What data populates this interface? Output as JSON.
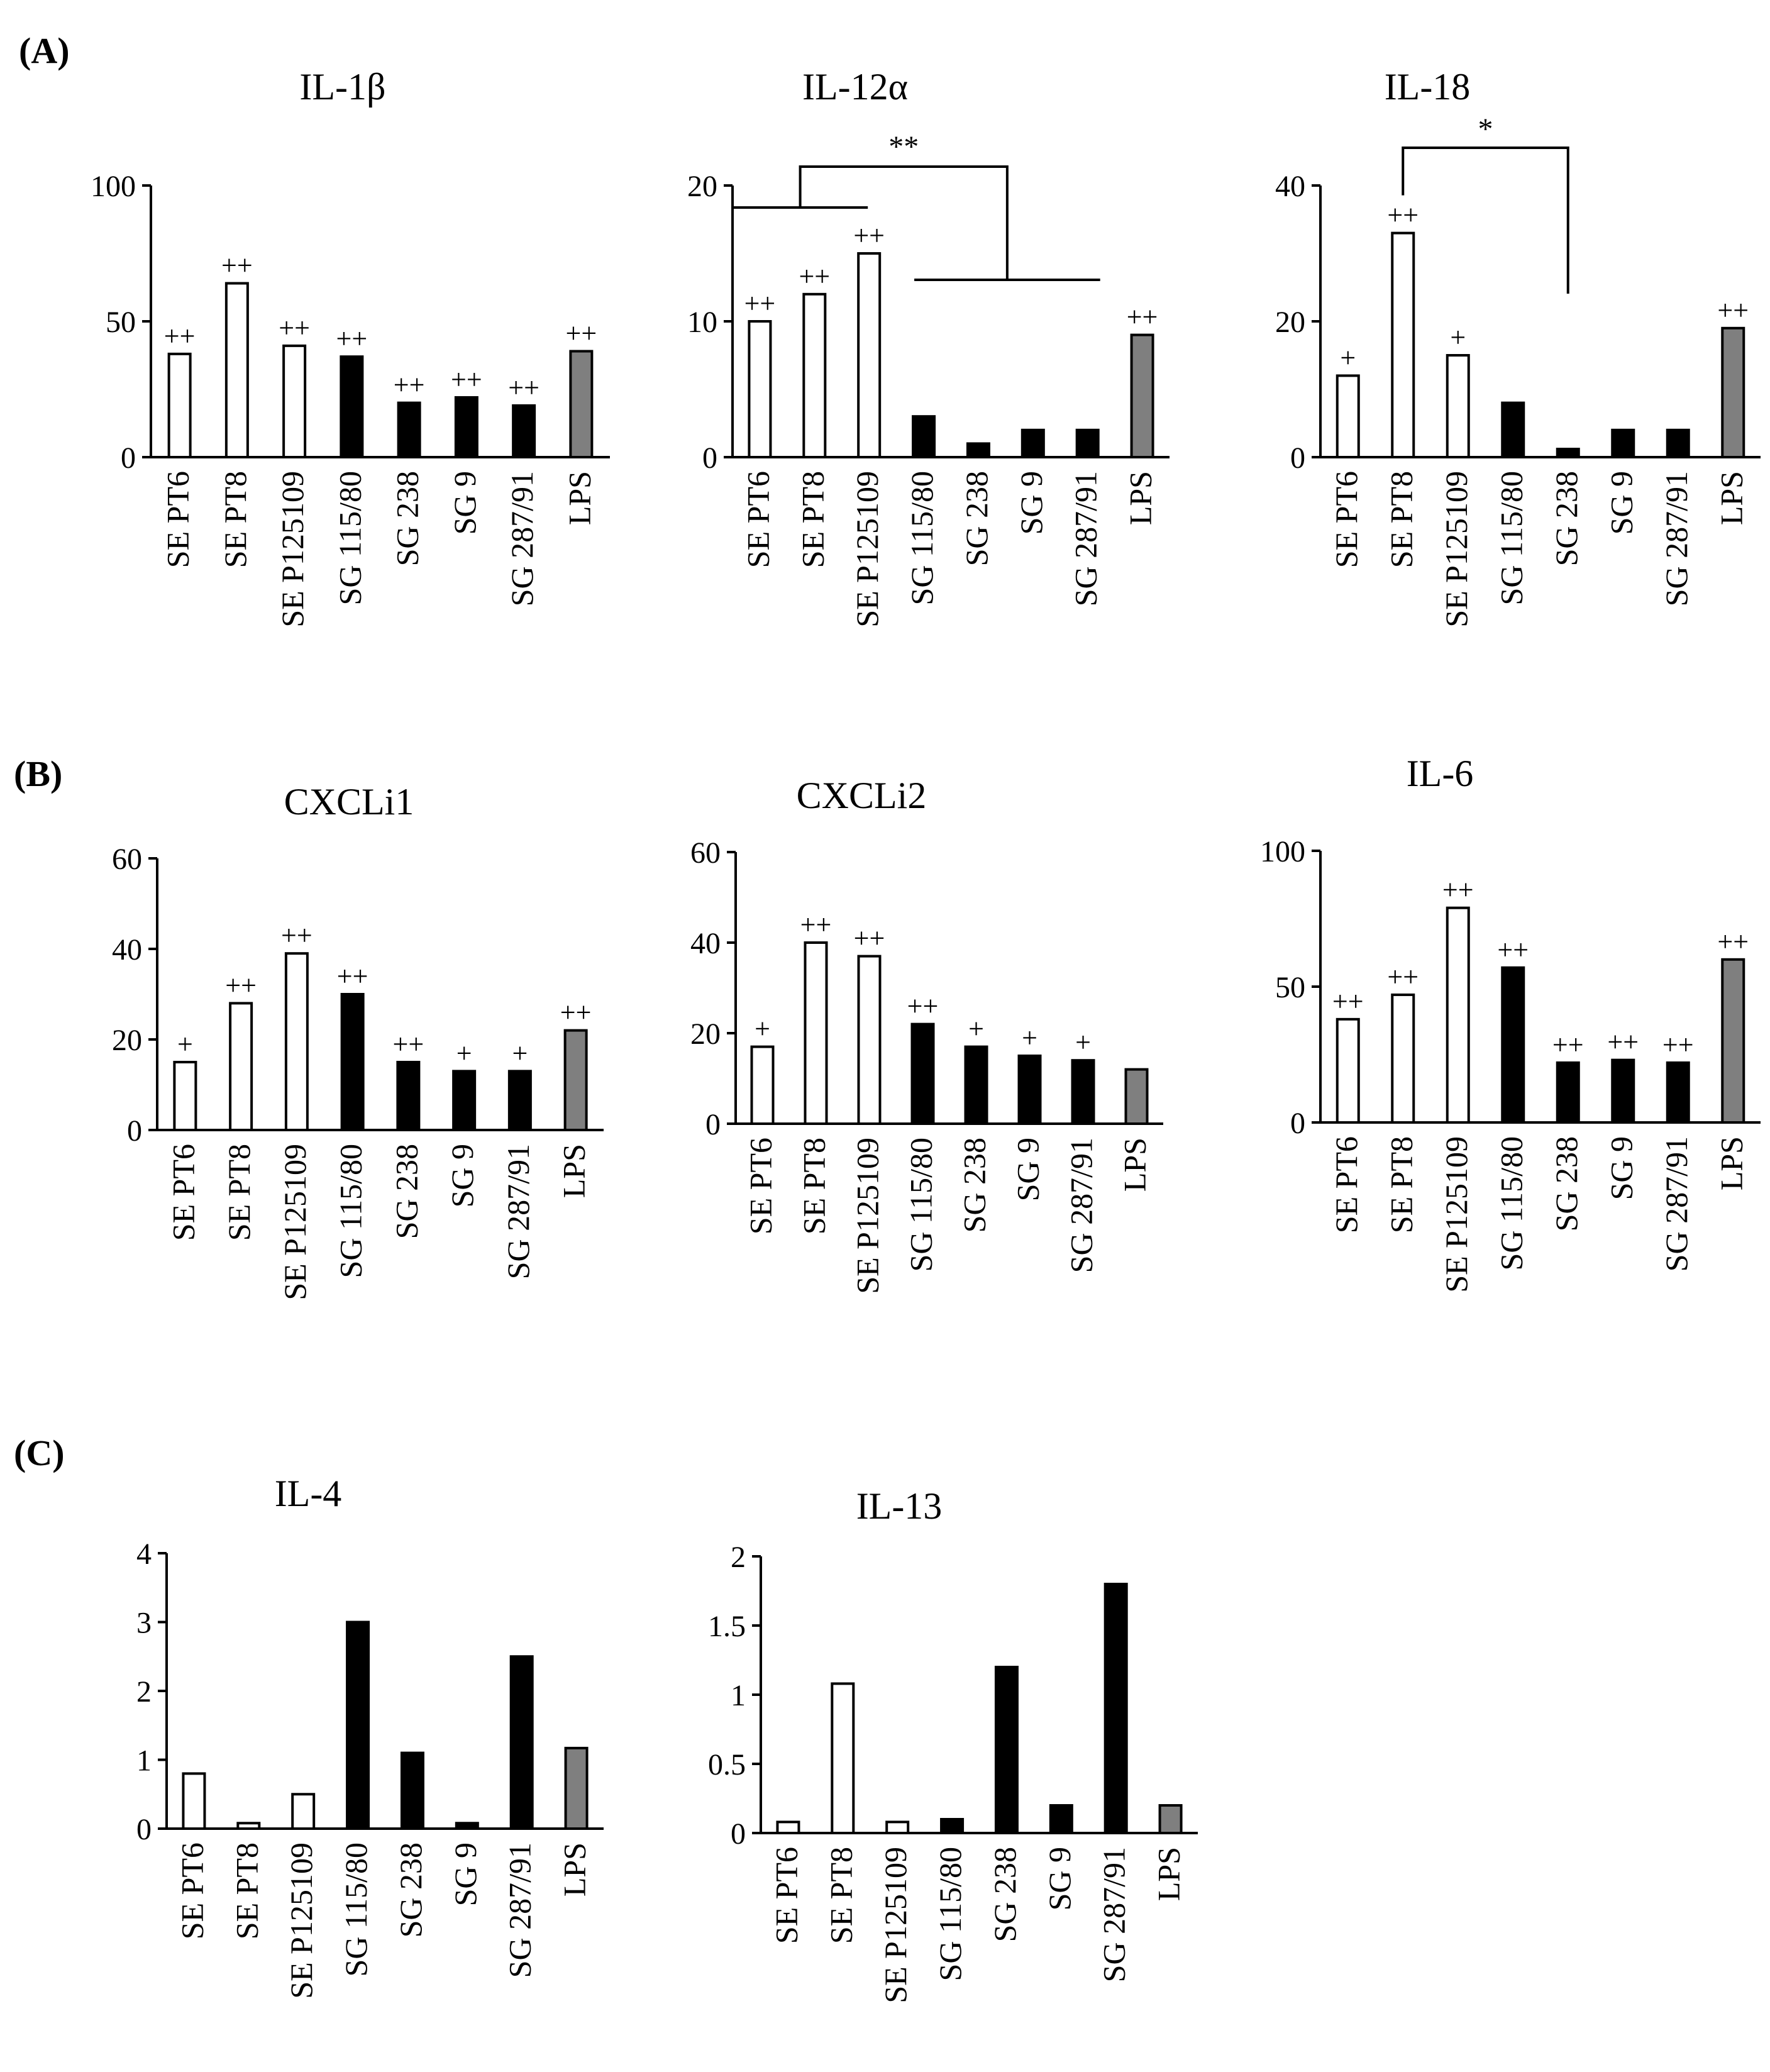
{
  "colors": {
    "SE": "#ffffff",
    "SG": "#000000",
    "LPS": "#7f7f7f",
    "axis": "#000000"
  },
  "panel_labels": [
    "(A)",
    "(B)",
    "(C)"
  ],
  "chart_data": [
    {
      "type": "bar",
      "title": "IL-1β",
      "panel": "(A)",
      "categories": [
        "SE PT6",
        "SE PT8",
        "SE P125109",
        "SG 115/80",
        "SG 238",
        "SG 9",
        "SG 287/91",
        "LPS"
      ],
      "groups": [
        "SE",
        "SE",
        "SE",
        "SG",
        "SG",
        "SG",
        "SG",
        "LPS"
      ],
      "values": [
        38,
        64,
        41,
        37,
        20,
        22,
        19,
        39
      ],
      "annotations": [
        "++",
        "++",
        "++",
        "++",
        "++",
        "++",
        "++",
        "++"
      ],
      "ylim": [
        0,
        100
      ],
      "yticks": [
        0,
        50,
        100
      ]
    },
    {
      "type": "bar",
      "title": "IL-12α",
      "panel": "",
      "categories": [
        "SE PT6",
        "SE PT8",
        "SE P125109",
        "SG 115/80",
        "SG 238",
        "SG 9",
        "SG 287/91",
        "LPS"
      ],
      "groups": [
        "SE",
        "SE",
        "SE",
        "SG",
        "SG",
        "SG",
        "SG",
        "LPS"
      ],
      "values": [
        10,
        12,
        15,
        3,
        1,
        2,
        2,
        9
      ],
      "annotations": [
        "++",
        "++",
        "++",
        "",
        "",
        "",
        "",
        "++"
      ],
      "ylim": [
        0,
        20
      ],
      "yticks": [
        0,
        10,
        20
      ],
      "significance": {
        "label": "**",
        "left_from": 0,
        "left_to": 2,
        "right_from": 3,
        "right_to": 6
      }
    },
    {
      "type": "bar",
      "title": "IL-18",
      "panel": "",
      "categories": [
        "SE PT6",
        "SE PT8",
        "SE P125109",
        "SG 115/80",
        "SG 238",
        "SG 9",
        "SG 287/91",
        "LPS"
      ],
      "groups": [
        "SE",
        "SE",
        "SE",
        "SG",
        "SG",
        "SG",
        "SG",
        "LPS"
      ],
      "values": [
        12,
        33,
        15,
        8,
        1.2,
        4,
        4,
        19
      ],
      "annotations": [
        "+",
        "++",
        "+",
        "",
        "",
        "",
        "",
        "++"
      ],
      "ylim": [
        0,
        40
      ],
      "yticks": [
        0,
        20,
        40
      ],
      "significance": {
        "label": "*",
        "from": 1,
        "to": 4
      }
    },
    {
      "type": "bar",
      "title": "CXCLi1",
      "panel": "(B)",
      "categories": [
        "SE PT6",
        "SE PT8",
        "SE P125109",
        "SG 115/80",
        "SG 238",
        "SG 9",
        "SG 287/91",
        "LPS"
      ],
      "groups": [
        "SE",
        "SE",
        "SE",
        "SG",
        "SG",
        "SG",
        "SG",
        "LPS"
      ],
      "values": [
        15,
        28,
        39,
        30,
        15,
        13,
        13,
        22
      ],
      "annotations": [
        "+",
        "++",
        "++",
        "++",
        "++",
        "+",
        "+",
        "++"
      ],
      "ylim": [
        0,
        60
      ],
      "yticks": [
        0,
        20,
        40,
        60
      ]
    },
    {
      "type": "bar",
      "title": "CXCLi2",
      "panel": "",
      "categories": [
        "SE PT6",
        "SE PT8",
        "SE P125109",
        "SG 115/80",
        "SG 238",
        "SG 9",
        "SG 287/91",
        "LPS"
      ],
      "groups": [
        "SE",
        "SE",
        "SE",
        "SG",
        "SG",
        "SG",
        "SG",
        "LPS"
      ],
      "values": [
        17,
        40,
        37,
        22,
        17,
        15,
        14,
        12
      ],
      "annotations": [
        "+",
        "++",
        "++",
        "++",
        "+",
        "+",
        "+",
        ""
      ],
      "ylim": [
        0,
        60
      ],
      "yticks": [
        0,
        20,
        40,
        60
      ]
    },
    {
      "type": "bar",
      "title": "IL-6",
      "panel": "",
      "categories": [
        "SE PT6",
        "SE PT8",
        "SE P125109",
        "SG 115/80",
        "SG 238",
        "SG 9",
        "SG 287/91",
        "LPS"
      ],
      "groups": [
        "SE",
        "SE",
        "SE",
        "SG",
        "SG",
        "SG",
        "SG",
        "LPS"
      ],
      "values": [
        38,
        47,
        79,
        57,
        22,
        23,
        22,
        60
      ],
      "annotations": [
        "++",
        "++",
        "++",
        "++",
        "++",
        "++",
        "++",
        "++"
      ],
      "ylim": [
        0,
        100
      ],
      "yticks": [
        0,
        50,
        100
      ]
    },
    {
      "type": "bar",
      "title": "IL-4",
      "panel": "(C)",
      "categories": [
        "SE PT6",
        "SE PT8",
        "SE P125109",
        "SG 115/80",
        "SG 238",
        "SG 9",
        "SG 287/91",
        "LPS"
      ],
      "groups": [
        "SE",
        "SE",
        "SE",
        "SG",
        "SG",
        "SG",
        "SG",
        "LPS"
      ],
      "values": [
        0.8,
        0.08,
        0.5,
        3,
        1.1,
        0.08,
        2.5,
        1.17
      ],
      "annotations": [
        "",
        "",
        "",
        "",
        "",
        "",
        "",
        ""
      ],
      "ylim": [
        0,
        4
      ],
      "yticks": [
        0,
        1,
        2,
        3,
        4
      ]
    },
    {
      "type": "bar",
      "title": "IL-13",
      "panel": "",
      "categories": [
        "SE PT6",
        "SE PT8",
        "SE P125109",
        "SG 115/80",
        "SG 238",
        "SG 9",
        "SG 287/91",
        "LPS"
      ],
      "groups": [
        "SE",
        "SE",
        "SE",
        "SG",
        "SG",
        "SG",
        "SG",
        "LPS"
      ],
      "values": [
        0.08,
        1.08,
        0.08,
        0.1,
        1.2,
        0.2,
        1.8,
        0.2
      ],
      "annotations": [
        "",
        "",
        "",
        "",
        "",
        "",
        "",
        ""
      ],
      "ylim": [
        0,
        2
      ],
      "yticks": [
        0,
        0.5,
        1,
        1.5,
        2
      ]
    }
  ]
}
